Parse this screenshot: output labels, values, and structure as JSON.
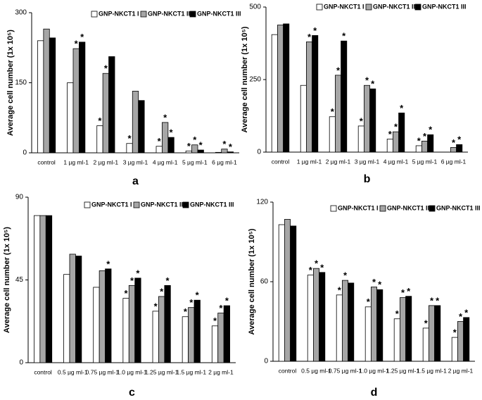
{
  "chart_data": [
    {
      "type": "bar",
      "panel": "a",
      "ylabel": "Average cell number (1x 10⁵)",
      "categories": [
        "control",
        "1 µg ml-1",
        "2 µg ml-1",
        "3 µg ml-1",
        "4 µg ml-1",
        "5 µg ml-1",
        "6 µg ml-1"
      ],
      "ylim": [
        0,
        300
      ],
      "yticks": [
        0,
        150,
        300
      ],
      "series": [
        {
          "name": "GNP-NKCT1 I",
          "color": "#ffffff",
          "values": [
            240,
            150,
            58,
            20,
            14,
            4,
            1
          ],
          "stars": [
            null,
            null,
            "*",
            "*",
            "*",
            "*",
            null
          ]
        },
        {
          "name": "GNP-NKCT1 II",
          "color": "#a6a6a6",
          "values": [
            265,
            223,
            170,
            132,
            65,
            17,
            8
          ],
          "stars": [
            null,
            "*",
            "*",
            null,
            "*",
            "*",
            "*"
          ]
        },
        {
          "name": "GNP-NKCT1 III",
          "color": "#000000",
          "values": [
            246,
            237,
            206,
            112,
            33,
            6,
            2
          ],
          "stars": [
            null,
            "*",
            null,
            null,
            "*",
            "*",
            "*"
          ]
        }
      ]
    },
    {
      "type": "bar",
      "panel": "b",
      "ylabel": "Average cell number (1x 10⁵)",
      "categories": [
        "control",
        "1 µg ml-1",
        "2 µg ml-1",
        "3 µg ml-1",
        "4 µg ml-1",
        "5 µg ml-1",
        "6 µg ml-1"
      ],
      "ylim": [
        0,
        500
      ],
      "yticks": [
        0,
        250,
        500
      ],
      "series": [
        {
          "name": "GNP-NKCT1 I",
          "color": "#ffffff",
          "values": [
            405,
            230,
            122,
            90,
            45,
            22,
            0
          ],
          "stars": [
            null,
            null,
            "*",
            "*",
            "*",
            "*",
            null
          ]
        },
        {
          "name": "GNP-NKCT1 II",
          "color": "#a6a6a6",
          "values": [
            438,
            380,
            265,
            230,
            70,
            38,
            16
          ],
          "stars": [
            null,
            "*",
            "*",
            "*",
            "*",
            "*",
            "*"
          ]
        },
        {
          "name": "GNP-NKCT1 III",
          "color": "#000000",
          "values": [
            442,
            402,
            383,
            218,
            135,
            60,
            26
          ],
          "stars": [
            null,
            "*",
            "*",
            "*",
            "*",
            "*",
            "*"
          ]
        }
      ]
    },
    {
      "type": "bar",
      "panel": "c",
      "ylabel": "Average cell number (1x 10⁵)",
      "categories": [
        "control",
        "0.5 µg ml-1",
        "0.75 µg ml-1",
        "1.0 µg ml-1",
        "1.25 µg ml-1",
        "1.5 µg ml-1",
        "2 µg ml-1"
      ],
      "ylim": [
        0,
        90
      ],
      "yticks": [
        0,
        45,
        90
      ],
      "series": [
        {
          "name": "GNP-NKCT1 I",
          "color": "#ffffff",
          "values": [
            80,
            48,
            41,
            35,
            28,
            25,
            20
          ],
          "stars": [
            null,
            null,
            null,
            "*",
            "*",
            "*",
            "*"
          ]
        },
        {
          "name": "GNP-NKCT1 II",
          "color": "#a6a6a6",
          "values": [
            80,
            59,
            50,
            42,
            36,
            30,
            27
          ],
          "stars": [
            null,
            null,
            null,
            "*",
            "*",
            "*",
            "*"
          ]
        },
        {
          "name": "GNP-NKCT1 III",
          "color": "#000000",
          "values": [
            80,
            58,
            51,
            46,
            42,
            34,
            31
          ],
          "stars": [
            null,
            null,
            "*",
            "*",
            "*",
            "*",
            "*"
          ]
        }
      ]
    },
    {
      "type": "bar",
      "panel": "d",
      "ylabel": "Average cell number (1x 10⁵)",
      "categories": [
        "control",
        "0.5 µg ml-1",
        "0.75 µg ml-1",
        "1.0 µg ml-1",
        "1.25 µg ml-1",
        "1.5 µg ml-1",
        "2 µg ml-1"
      ],
      "ylim": [
        0,
        120
      ],
      "yticks": [
        0,
        60,
        120
      ],
      "series": [
        {
          "name": "GNP-NKCT1 I",
          "color": "#ffffff",
          "values": [
            103,
            65,
            50,
            41,
            32,
            25,
            18
          ],
          "stars": [
            null,
            "*",
            "*",
            "*",
            "*",
            "*",
            "*"
          ]
        },
        {
          "name": "GNP-NKCT1 II",
          "color": "#a6a6a6",
          "values": [
            107,
            70,
            61,
            56,
            48,
            42,
            30
          ],
          "stars": [
            null,
            "*",
            "*",
            "*",
            "*",
            "*",
            "*"
          ]
        },
        {
          "name": "GNP-NKCT1 III",
          "color": "#000000",
          "values": [
            102,
            67,
            59,
            54,
            49,
            42,
            33
          ],
          "stars": [
            null,
            "*",
            null,
            "*",
            "*",
            "*",
            "*"
          ]
        }
      ]
    }
  ]
}
